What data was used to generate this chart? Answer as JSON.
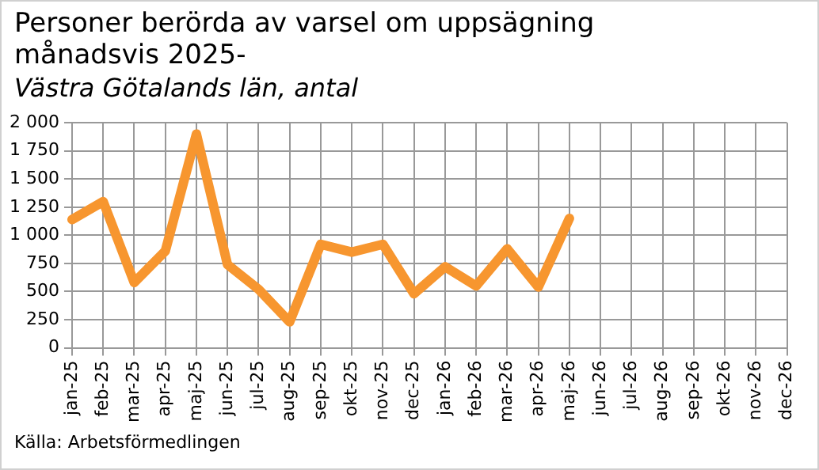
{
  "chart_data": {
    "type": "line",
    "title": "Personer berörda av varsel om uppsägning månadsvis 2025-",
    "subtitle": "Västra Götalands län, antal",
    "categories": [
      "jan-25",
      "feb-25",
      "mar-25",
      "apr-25",
      "maj-25",
      "jun-25",
      "jul-25",
      "aug-25",
      "sep-25",
      "okt-25",
      "nov-25",
      "dec-25",
      "jan-26",
      "feb-26",
      "mar-26",
      "apr-26",
      "maj-26",
      "jun-26",
      "jul-26",
      "aug-26",
      "sep-26",
      "okt-26",
      "nov-26",
      "dec-26"
    ],
    "series": [
      {
        "color": "#f7962f",
        "values": [
          1140,
          1300,
          580,
          860,
          1900,
          740,
          520,
          230,
          920,
          850,
          920,
          480,
          720,
          550,
          880,
          540,
          1150,
          null,
          null,
          null,
          null,
          null,
          null,
          null
        ]
      }
    ],
    "ylim": [
      0,
      2000
    ],
    "yticks": [
      0,
      250,
      500,
      750,
      {
        "value": 1000,
        "label": "1 000"
      },
      {
        "value": 1250,
        "label": "1 250"
      },
      {
        "value": 1500,
        "label": "1 500"
      },
      {
        "value": 1750,
        "label": "1 750"
      },
      {
        "value": 2000,
        "label": "2 000"
      }
    ],
    "grid": true,
    "legend": false,
    "marker": "none",
    "line_style": "solid",
    "annotations": [
      "Källa: Arbetsförmedlingen"
    ]
  }
}
